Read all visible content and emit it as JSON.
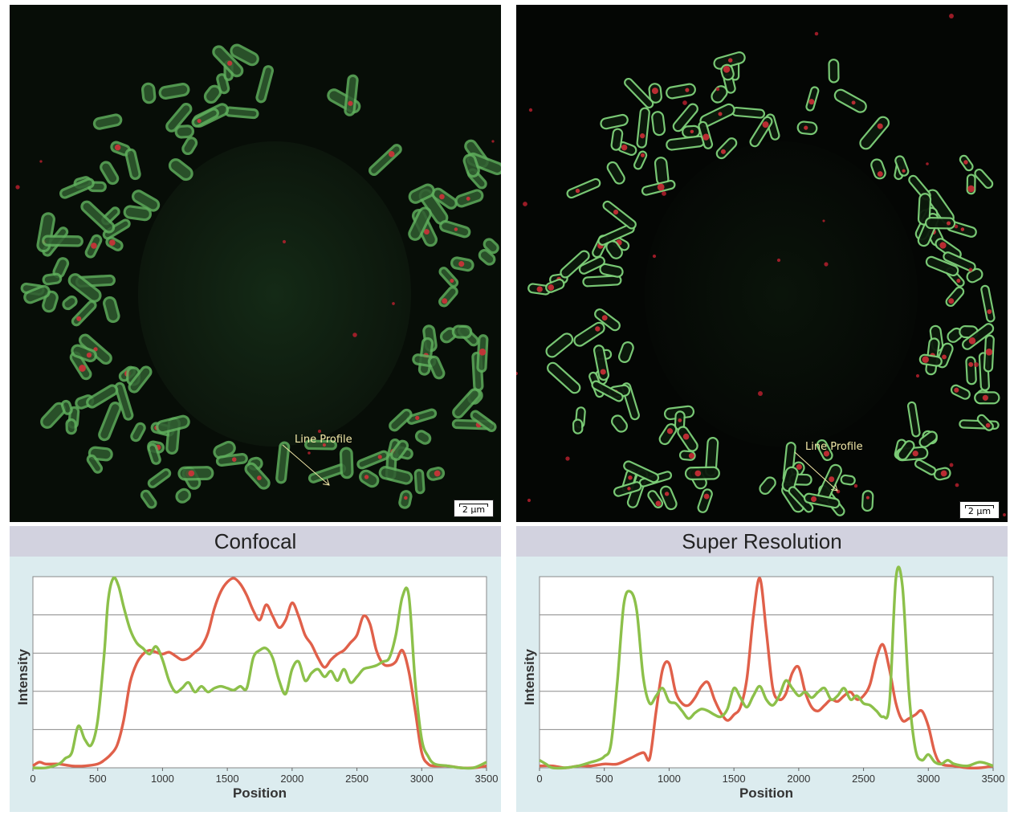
{
  "panels": [
    {
      "title": "Confocal",
      "scale_label": "2 µm",
      "line_profile_label": "Line Profile"
    },
    {
      "title": "Super Resolution",
      "scale_label": "2 µm",
      "line_profile_label": "Line Profile"
    }
  ],
  "colors": {
    "red_series": "#e0604a",
    "green_series": "#8cc04a",
    "title_bar": "#d2d2df",
    "chart_background": "#dcecef",
    "micro_background": "#050805"
  },
  "chart_data": [
    {
      "type": "line",
      "title": "Confocal",
      "xlabel": "Position",
      "ylabel": "Intensity",
      "xlim": [
        0,
        3500
      ],
      "xticks": [
        0,
        500,
        1000,
        1500,
        2000,
        2500,
        3000,
        3500
      ],
      "ylim": [
        0,
        1
      ],
      "grid": true,
      "series": [
        {
          "color": "#e0604a",
          "x": [
            0,
            50,
            100,
            200,
            300,
            400,
            500,
            550,
            600,
            650,
            700,
            750,
            800,
            850,
            900,
            950,
            1000,
            1050,
            1100,
            1150,
            1200,
            1250,
            1300,
            1350,
            1400,
            1450,
            1500,
            1550,
            1600,
            1650,
            1700,
            1750,
            1800,
            1850,
            1900,
            1950,
            2000,
            2050,
            2100,
            2150,
            2200,
            2250,
            2300,
            2350,
            2400,
            2450,
            2500,
            2550,
            2600,
            2650,
            2700,
            2750,
            2800,
            2850,
            2900,
            2950,
            3000,
            3050,
            3100,
            3200,
            3300,
            3400,
            3500
          ],
          "y": [
            0.01,
            0.03,
            0.02,
            0.02,
            0.01,
            0.01,
            0.02,
            0.04,
            0.07,
            0.12,
            0.25,
            0.45,
            0.55,
            0.6,
            0.62,
            0.61,
            0.6,
            0.61,
            0.59,
            0.57,
            0.58,
            0.61,
            0.64,
            0.71,
            0.84,
            0.93,
            0.98,
            1.0,
            0.97,
            0.91,
            0.83,
            0.78,
            0.86,
            0.8,
            0.74,
            0.78,
            0.87,
            0.8,
            0.7,
            0.65,
            0.58,
            0.53,
            0.57,
            0.6,
            0.62,
            0.66,
            0.7,
            0.8,
            0.76,
            0.62,
            0.55,
            0.54,
            0.56,
            0.62,
            0.51,
            0.3,
            0.08,
            0.02,
            0.01,
            0.01,
            0.0,
            0.0,
            0.01
          ]
        },
        {
          "color": "#8cc04a",
          "x": [
            0,
            100,
            200,
            250,
            300,
            350,
            400,
            450,
            500,
            550,
            580,
            620,
            660,
            700,
            750,
            800,
            850,
            900,
            950,
            1000,
            1050,
            1100,
            1150,
            1200,
            1250,
            1300,
            1350,
            1400,
            1450,
            1500,
            1550,
            1600,
            1650,
            1700,
            1750,
            1800,
            1850,
            1900,
            1950,
            2000,
            2050,
            2100,
            2150,
            2200,
            2250,
            2300,
            2350,
            2400,
            2450,
            2500,
            2550,
            2600,
            2650,
            2700,
            2750,
            2800,
            2850,
            2900,
            2950,
            3000,
            3050,
            3100,
            3200,
            3300,
            3400,
            3500
          ],
          "y": [
            0.0,
            0.0,
            0.02,
            0.05,
            0.08,
            0.22,
            0.15,
            0.12,
            0.25,
            0.6,
            0.88,
            1.0,
            0.96,
            0.85,
            0.73,
            0.66,
            0.63,
            0.6,
            0.64,
            0.57,
            0.46,
            0.4,
            0.42,
            0.45,
            0.4,
            0.43,
            0.4,
            0.42,
            0.43,
            0.42,
            0.41,
            0.43,
            0.42,
            0.58,
            0.62,
            0.63,
            0.58,
            0.46,
            0.39,
            0.52,
            0.56,
            0.46,
            0.5,
            0.52,
            0.48,
            0.51,
            0.46,
            0.52,
            0.45,
            0.48,
            0.52,
            0.53,
            0.54,
            0.56,
            0.58,
            0.7,
            0.9,
            0.91,
            0.45,
            0.15,
            0.06,
            0.02,
            0.01,
            0.0,
            0.0,
            0.03
          ]
        }
      ]
    },
    {
      "type": "line",
      "title": "Super Resolution",
      "xlabel": "Position",
      "ylabel": "Intensity",
      "xlim": [
        0,
        3500
      ],
      "xticks": [
        0,
        500,
        1000,
        1500,
        2000,
        2500,
        3000,
        3500
      ],
      "ylim": [
        0,
        1
      ],
      "grid": true,
      "series": [
        {
          "color": "#e0604a",
          "x": [
            0,
            100,
            200,
            300,
            400,
            500,
            600,
            700,
            800,
            850,
            900,
            950,
            1000,
            1050,
            1100,
            1150,
            1200,
            1250,
            1300,
            1350,
            1400,
            1450,
            1500,
            1550,
            1600,
            1650,
            1700,
            1750,
            1800,
            1850,
            1900,
            1950,
            2000,
            2050,
            2100,
            2150,
            2200,
            2250,
            2300,
            2350,
            2400,
            2450,
            2500,
            2550,
            2600,
            2650,
            2700,
            2750,
            2800,
            2850,
            2900,
            2950,
            3000,
            3050,
            3100,
            3200,
            3300,
            3400,
            3500
          ],
          "y": [
            0.01,
            0.01,
            0.0,
            0.01,
            0.01,
            0.02,
            0.02,
            0.05,
            0.08,
            0.05,
            0.3,
            0.52,
            0.55,
            0.4,
            0.34,
            0.33,
            0.37,
            0.43,
            0.45,
            0.36,
            0.29,
            0.25,
            0.28,
            0.32,
            0.47,
            0.8,
            1.0,
            0.72,
            0.42,
            0.36,
            0.39,
            0.5,
            0.53,
            0.4,
            0.32,
            0.3,
            0.33,
            0.36,
            0.35,
            0.38,
            0.4,
            0.36,
            0.38,
            0.44,
            0.58,
            0.65,
            0.52,
            0.34,
            0.25,
            0.26,
            0.28,
            0.3,
            0.22,
            0.08,
            0.02,
            0.01,
            0.0,
            0.0,
            0.01
          ]
        },
        {
          "color": "#8cc04a",
          "x": [
            0,
            50,
            100,
            200,
            300,
            400,
            450,
            500,
            550,
            600,
            650,
            700,
            750,
            800,
            850,
            900,
            950,
            1000,
            1050,
            1100,
            1150,
            1200,
            1250,
            1300,
            1350,
            1400,
            1450,
            1500,
            1550,
            1600,
            1650,
            1700,
            1750,
            1800,
            1850,
            1900,
            1950,
            2000,
            2050,
            2100,
            2150,
            2200,
            2250,
            2300,
            2350,
            2400,
            2450,
            2500,
            2550,
            2600,
            2650,
            2700,
            2750,
            2800,
            2850,
            2900,
            2950,
            3000,
            3050,
            3100,
            3150,
            3200,
            3300,
            3400,
            3500
          ],
          "y": [
            0.04,
            0.02,
            0.0,
            0.0,
            0.01,
            0.03,
            0.04,
            0.06,
            0.12,
            0.45,
            0.86,
            0.93,
            0.83,
            0.48,
            0.34,
            0.38,
            0.42,
            0.35,
            0.34,
            0.3,
            0.26,
            0.29,
            0.31,
            0.3,
            0.28,
            0.27,
            0.31,
            0.42,
            0.37,
            0.32,
            0.38,
            0.43,
            0.36,
            0.33,
            0.38,
            0.46,
            0.42,
            0.38,
            0.4,
            0.37,
            0.4,
            0.42,
            0.36,
            0.38,
            0.42,
            0.36,
            0.38,
            0.34,
            0.33,
            0.3,
            0.27,
            0.34,
            1.0,
            0.96,
            0.4,
            0.1,
            0.04,
            0.07,
            0.03,
            0.02,
            0.04,
            0.02,
            0.01,
            0.03,
            0.01
          ]
        }
      ]
    }
  ]
}
